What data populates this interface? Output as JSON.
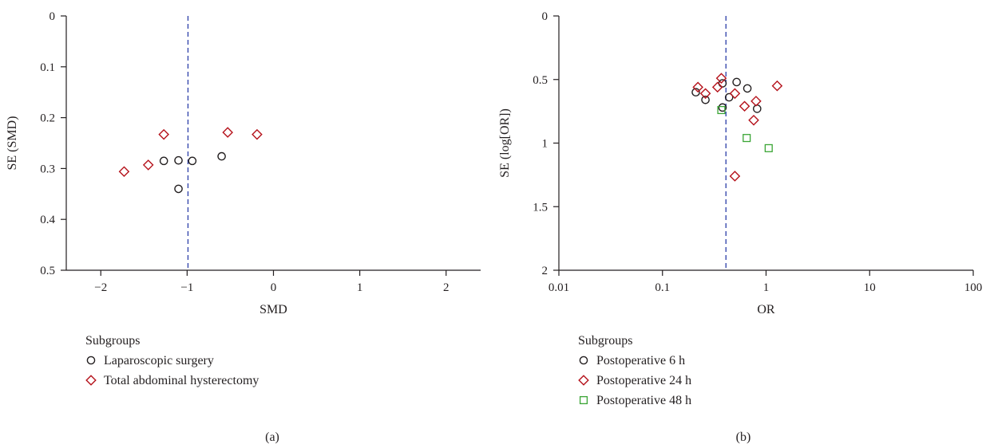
{
  "chart_data": [
    {
      "type": "scatter",
      "title": "",
      "caption": "(a)",
      "xlabel": "SMD",
      "ylabel": "SE (SMD)",
      "xlim": [
        -2.4,
        2.4
      ],
      "ylim": [
        0,
        0.5
      ],
      "y_reversed": true,
      "x_scale": "linear",
      "x_ticks": [
        -2,
        -1,
        0,
        1,
        2
      ],
      "x_tick_labels": [
        "−2",
        "−1",
        "0",
        "1",
        "2"
      ],
      "y_ticks": [
        0,
        0.1,
        0.2,
        0.3,
        0.4,
        0.5
      ],
      "y_tick_labels": [
        "0",
        "0.1",
        "0.2",
        "0.3",
        "0.4",
        "0.5"
      ],
      "reference_line": {
        "x": -0.99,
        "style": "dashed",
        "color": "#2b3ea8"
      },
      "legend": {
        "title": "Subgroups",
        "placement": "below-left"
      },
      "series": [
        {
          "name": "Laparoscopic surgery",
          "marker": "circle",
          "color": "#231f20",
          "points": [
            [
              -1.27,
              0.285
            ],
            [
              -1.1,
              0.284
            ],
            [
              -0.94,
              0.285
            ],
            [
              -0.6,
              0.276
            ],
            [
              -1.1,
              0.34
            ]
          ]
        },
        {
          "name": "Total abdominal hysterectomy",
          "marker": "diamond",
          "color": "#b5121b",
          "points": [
            [
              -1.73,
              0.306
            ],
            [
              -1.45,
              0.293
            ],
            [
              -1.27,
              0.233
            ],
            [
              -0.53,
              0.229
            ],
            [
              -0.19,
              0.233
            ]
          ]
        }
      ]
    },
    {
      "type": "scatter",
      "title": "",
      "caption": "(b)",
      "xlabel": "OR",
      "ylabel": "SE (log[OR])",
      "xlim": [
        0.01,
        100
      ],
      "ylim": [
        0,
        2
      ],
      "y_reversed": true,
      "x_scale": "log",
      "x_ticks": [
        0.01,
        0.1,
        1,
        10,
        100
      ],
      "x_tick_labels": [
        "0.01",
        "0.1",
        "1",
        "10",
        "100"
      ],
      "y_ticks": [
        0,
        0.5,
        1,
        1.5,
        2
      ],
      "y_tick_labels": [
        "0",
        "0.5",
        "1",
        "1.5",
        "2"
      ],
      "reference_line": {
        "x": 0.41,
        "style": "dashed",
        "color": "#2b3ea8"
      },
      "legend": {
        "title": "Subgroups",
        "placement": "below-left"
      },
      "series": [
        {
          "name": "Postoperative 6 h",
          "marker": "circle",
          "color": "#231f20",
          "points": [
            [
              0.21,
              0.6
            ],
            [
              0.26,
              0.66
            ],
            [
              0.38,
              0.53
            ],
            [
              0.44,
              0.64
            ],
            [
              0.52,
              0.52
            ],
            [
              0.66,
              0.57
            ],
            [
              0.82,
              0.73
            ],
            [
              0.38,
              0.72
            ]
          ]
        },
        {
          "name": "Postoperative 24 h",
          "marker": "diamond",
          "color": "#b5121b",
          "points": [
            [
              0.22,
              0.56
            ],
            [
              0.26,
              0.61
            ],
            [
              0.34,
              0.56
            ],
            [
              0.37,
              0.49
            ],
            [
              0.5,
              0.61
            ],
            [
              0.62,
              0.71
            ],
            [
              0.76,
              0.82
            ],
            [
              0.8,
              0.67
            ],
            [
              1.28,
              0.55
            ],
            [
              0.5,
              1.26
            ]
          ]
        },
        {
          "name": "Postoperative 48 h",
          "marker": "square",
          "color": "#3aa535",
          "points": [
            [
              0.37,
              0.74
            ],
            [
              0.65,
              0.96
            ],
            [
              1.06,
              1.04
            ]
          ]
        }
      ]
    }
  ]
}
